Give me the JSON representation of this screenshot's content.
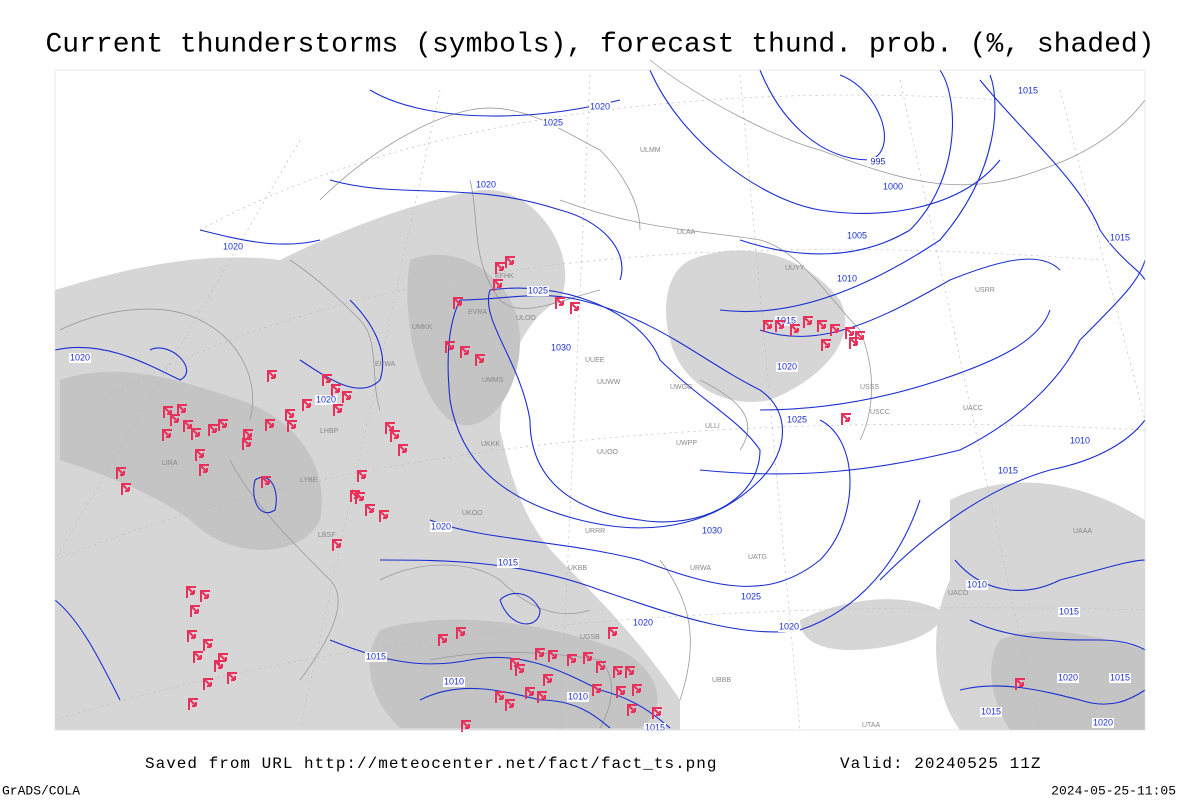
{
  "title": "Current thunderstorms (symbols), forecast thund. prob. (%, shaded)",
  "footer": {
    "source": "Saved from URL http://meteocenter.net/fact/fact_ts.png",
    "valid": "Valid: 20240525 11Z",
    "credit": "GrADS/COLA",
    "timestamp": "2024-05-25-11:05"
  },
  "isobar_labels": [
    "1020",
    "1025",
    "1020",
    "1020",
    "1020",
    "1020",
    "1025",
    "1030",
    "995",
    "1000",
    "1005",
    "1010",
    "1015",
    "1020",
    "1025",
    "1030",
    "1020",
    "1015",
    "1025",
    "1020",
    "1020",
    "1015",
    "1010",
    "1010",
    "1015",
    "1015",
    "1015",
    "1010",
    "1015",
    "1010",
    "1015",
    "1020",
    "1015",
    "1015",
    "1020"
  ],
  "stations": [
    "ULAA",
    "ULLI",
    "ULOO",
    "UMMS",
    "UMKK",
    "UKKK",
    "UUEE",
    "UUWW",
    "UUOO",
    "UWPP",
    "UWGG",
    "URRR",
    "URWA",
    "UATG",
    "USSS",
    "USCC",
    "UACC",
    "USRR",
    "UUYY",
    "ULMM",
    "EFHK",
    "EVRA",
    "EPWA",
    "LHBP",
    "LBSF",
    "LYBE",
    "LIRA",
    "UKBB",
    "UKOO",
    "UGSB",
    "UBBB",
    "UTAA",
    "UAAA",
    "UACO"
  ]
}
